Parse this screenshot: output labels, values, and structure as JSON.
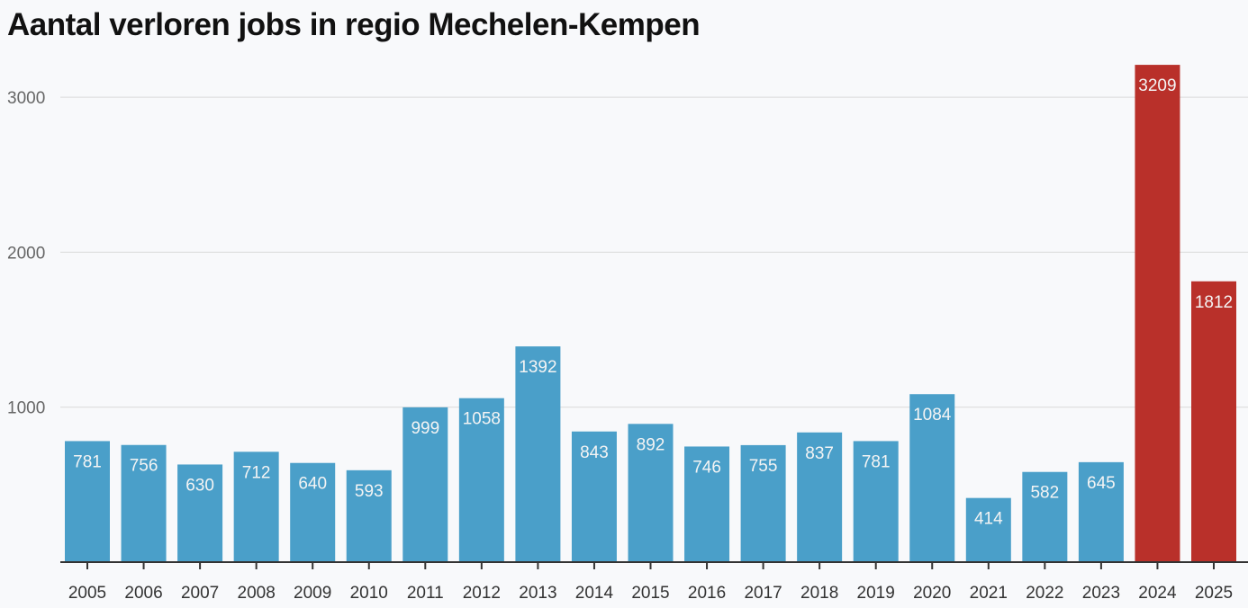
{
  "chart_data": {
    "type": "bar",
    "title": "Aantal verloren jobs in regio Mechelen-Kempen",
    "xlabel": "",
    "ylabel": "",
    "categories": [
      "2005",
      "2006",
      "2007",
      "2008",
      "2009",
      "2010",
      "2011",
      "2012",
      "2013",
      "2014",
      "2015",
      "2016",
      "2017",
      "2018",
      "2019",
      "2020",
      "2021",
      "2022",
      "2023",
      "2024",
      "2025"
    ],
    "values": [
      781,
      756,
      630,
      712,
      640,
      593,
      999,
      1058,
      1392,
      843,
      892,
      746,
      755,
      837,
      781,
      1084,
      414,
      582,
      645,
      3209,
      1812
    ],
    "highlighted": [
      "2024",
      "2025"
    ],
    "ylim": [
      0,
      3200
    ],
    "yticks": [
      1000,
      2000,
      3000
    ],
    "grid": true,
    "data_labels": true,
    "colors": {
      "default": "#4a9fc9",
      "highlight": "#b9302a",
      "background": "#f8f9fb"
    }
  }
}
